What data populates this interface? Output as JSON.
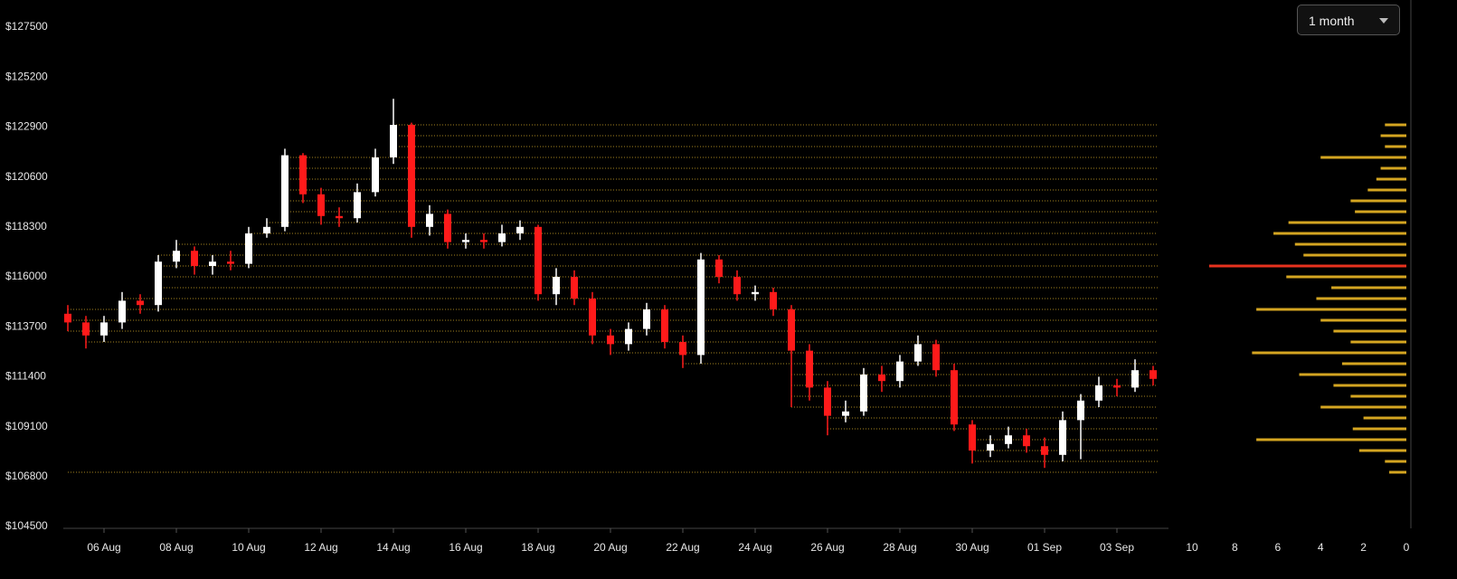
{
  "chart_data": {
    "type": "candlestick",
    "range_selector": "1 month",
    "up_color": "#ffffff",
    "down_color": "#ff1a1a",
    "categories": [
      null,
      null,
      "06 Aug",
      null,
      null,
      null,
      "08 Aug",
      null,
      null,
      null,
      "10 Aug",
      null,
      null,
      null,
      "12 Aug",
      null,
      null,
      null,
      "14 Aug",
      null,
      null,
      null,
      "16 Aug",
      null,
      null,
      null,
      "18 Aug",
      null,
      null,
      null,
      "20 Aug",
      null,
      null,
      null,
      "22 Aug",
      null,
      null,
      null,
      "24 Aug",
      null,
      null,
      null,
      "26 Aug",
      null,
      null,
      null,
      "28 Aug",
      null,
      null,
      null,
      "30 Aug",
      null,
      null,
      null,
      "01 Sep",
      null,
      null,
      null,
      "03 Sep",
      null,
      null
    ],
    "open": [
      114300,
      113900,
      113300,
      113900,
      114900,
      114700,
      116700,
      117200,
      116500,
      116700,
      116600,
      118000,
      118300,
      121600,
      119800,
      118800,
      118700,
      119900,
      121500,
      123000,
      118300,
      118900,
      117600,
      117700,
      117600,
      118000,
      118300,
      115200,
      116000,
      115000,
      113300,
      112900,
      113600,
      114500,
      113000,
      112400,
      116800,
      116000,
      115200,
      115300,
      114500,
      112600,
      110900,
      109600,
      109800,
      111500,
      111200,
      112100,
      112900,
      111700,
      109200,
      108000,
      108300,
      108700,
      108200,
      107800,
      109400,
      110300,
      111000,
      110900,
      111700
    ],
    "high": [
      114700,
      114200,
      114200,
      115300,
      115200,
      117000,
      117700,
      117400,
      117000,
      117200,
      118300,
      118700,
      121900,
      121700,
      120100,
      119200,
      120300,
      121900,
      124200,
      123100,
      119300,
      119100,
      118000,
      118000,
      118400,
      118600,
      118400,
      116400,
      116300,
      115300,
      113600,
      113900,
      114800,
      114700,
      113300,
      117100,
      117000,
      116300,
      115600,
      115500,
      114700,
      112900,
      111200,
      110300,
      111800,
      111900,
      112400,
      113300,
      113100,
      112000,
      109400,
      108700,
      109100,
      109000,
      108600,
      109800,
      110600,
      111400,
      111300,
      112200,
      111900
    ],
    "low": [
      113500,
      112700,
      113000,
      113600,
      114300,
      114400,
      116400,
      116100,
      116100,
      116300,
      116400,
      117800,
      118100,
      119400,
      118400,
      118300,
      118500,
      119700,
      121200,
      117800,
      117900,
      117300,
      117300,
      117300,
      117400,
      117700,
      114900,
      114700,
      114700,
      112900,
      112400,
      112600,
      113300,
      112700,
      111800,
      112000,
      115700,
      114900,
      114900,
      114200,
      110000,
      110300,
      108700,
      109300,
      109600,
      110700,
      110900,
      111900,
      111400,
      108900,
      107400,
      107700,
      108100,
      107900,
      107200,
      107500,
      107600,
      110000,
      110500,
      110700,
      111000
    ],
    "close": [
      113900,
      113300,
      113900,
      114900,
      114700,
      116700,
      117200,
      116500,
      116700,
      116600,
      118000,
      118300,
      121600,
      119800,
      118800,
      118700,
      119900,
      121500,
      123000,
      118300,
      118900,
      117600,
      117700,
      117600,
      118000,
      118300,
      115200,
      116000,
      115000,
      113300,
      112900,
      113600,
      114500,
      113000,
      112400,
      116800,
      116000,
      115200,
      115300,
      114500,
      112600,
      110900,
      109600,
      109800,
      111500,
      111200,
      112100,
      112900,
      111700,
      109200,
      108000,
      108300,
      108700,
      108200,
      107800,
      109400,
      110300,
      111000,
      110900,
      111700,
      111300
    ],
    "ylim": [
      104500,
      127500
    ],
    "yticks": [
      {
        "value": 104500,
        "label": "$104500"
      },
      {
        "value": 106800,
        "label": "$106800"
      },
      {
        "value": 109100,
        "label": "$109100"
      },
      {
        "value": 111400,
        "label": "$111400"
      },
      {
        "value": 113700,
        "label": "$113700"
      },
      {
        "value": 116000,
        "label": "$116000"
      },
      {
        "value": 118300,
        "label": "$118300"
      },
      {
        "value": 120600,
        "label": "$120600"
      },
      {
        "value": 122900,
        "label": "$122900"
      },
      {
        "value": 125200,
        "label": "$125200"
      },
      {
        "value": 127500,
        "label": "$127500"
      }
    ],
    "profile": {
      "color": "#d4a521",
      "peak_color": "#e8321e",
      "level_line_color": "#c9a227",
      "levels": [
        107000,
        107500,
        108000,
        108500,
        109000,
        109500,
        110000,
        110500,
        111000,
        111500,
        112000,
        112500,
        113000,
        113500,
        114000,
        114500,
        115000,
        115500,
        116000,
        116500,
        117000,
        117500,
        118000,
        118500,
        119000,
        119500,
        120000,
        120500,
        121000,
        121500,
        122000,
        122500,
        123000
      ],
      "counts": [
        0.8,
        1.0,
        2.2,
        7.0,
        2.5,
        2.0,
        4.0,
        2.6,
        3.4,
        5.0,
        3.0,
        7.2,
        2.6,
        3.4,
        4.0,
        7.0,
        4.2,
        3.5,
        5.6,
        9.2,
        4.8,
        5.2,
        6.2,
        5.5,
        2.4,
        2.6,
        1.8,
        1.4,
        1.2,
        4.0,
        1.0,
        1.2,
        1.0
      ],
      "xlim": [
        10,
        0
      ],
      "xticks": [
        10,
        8,
        6,
        4,
        2,
        0
      ]
    }
  }
}
